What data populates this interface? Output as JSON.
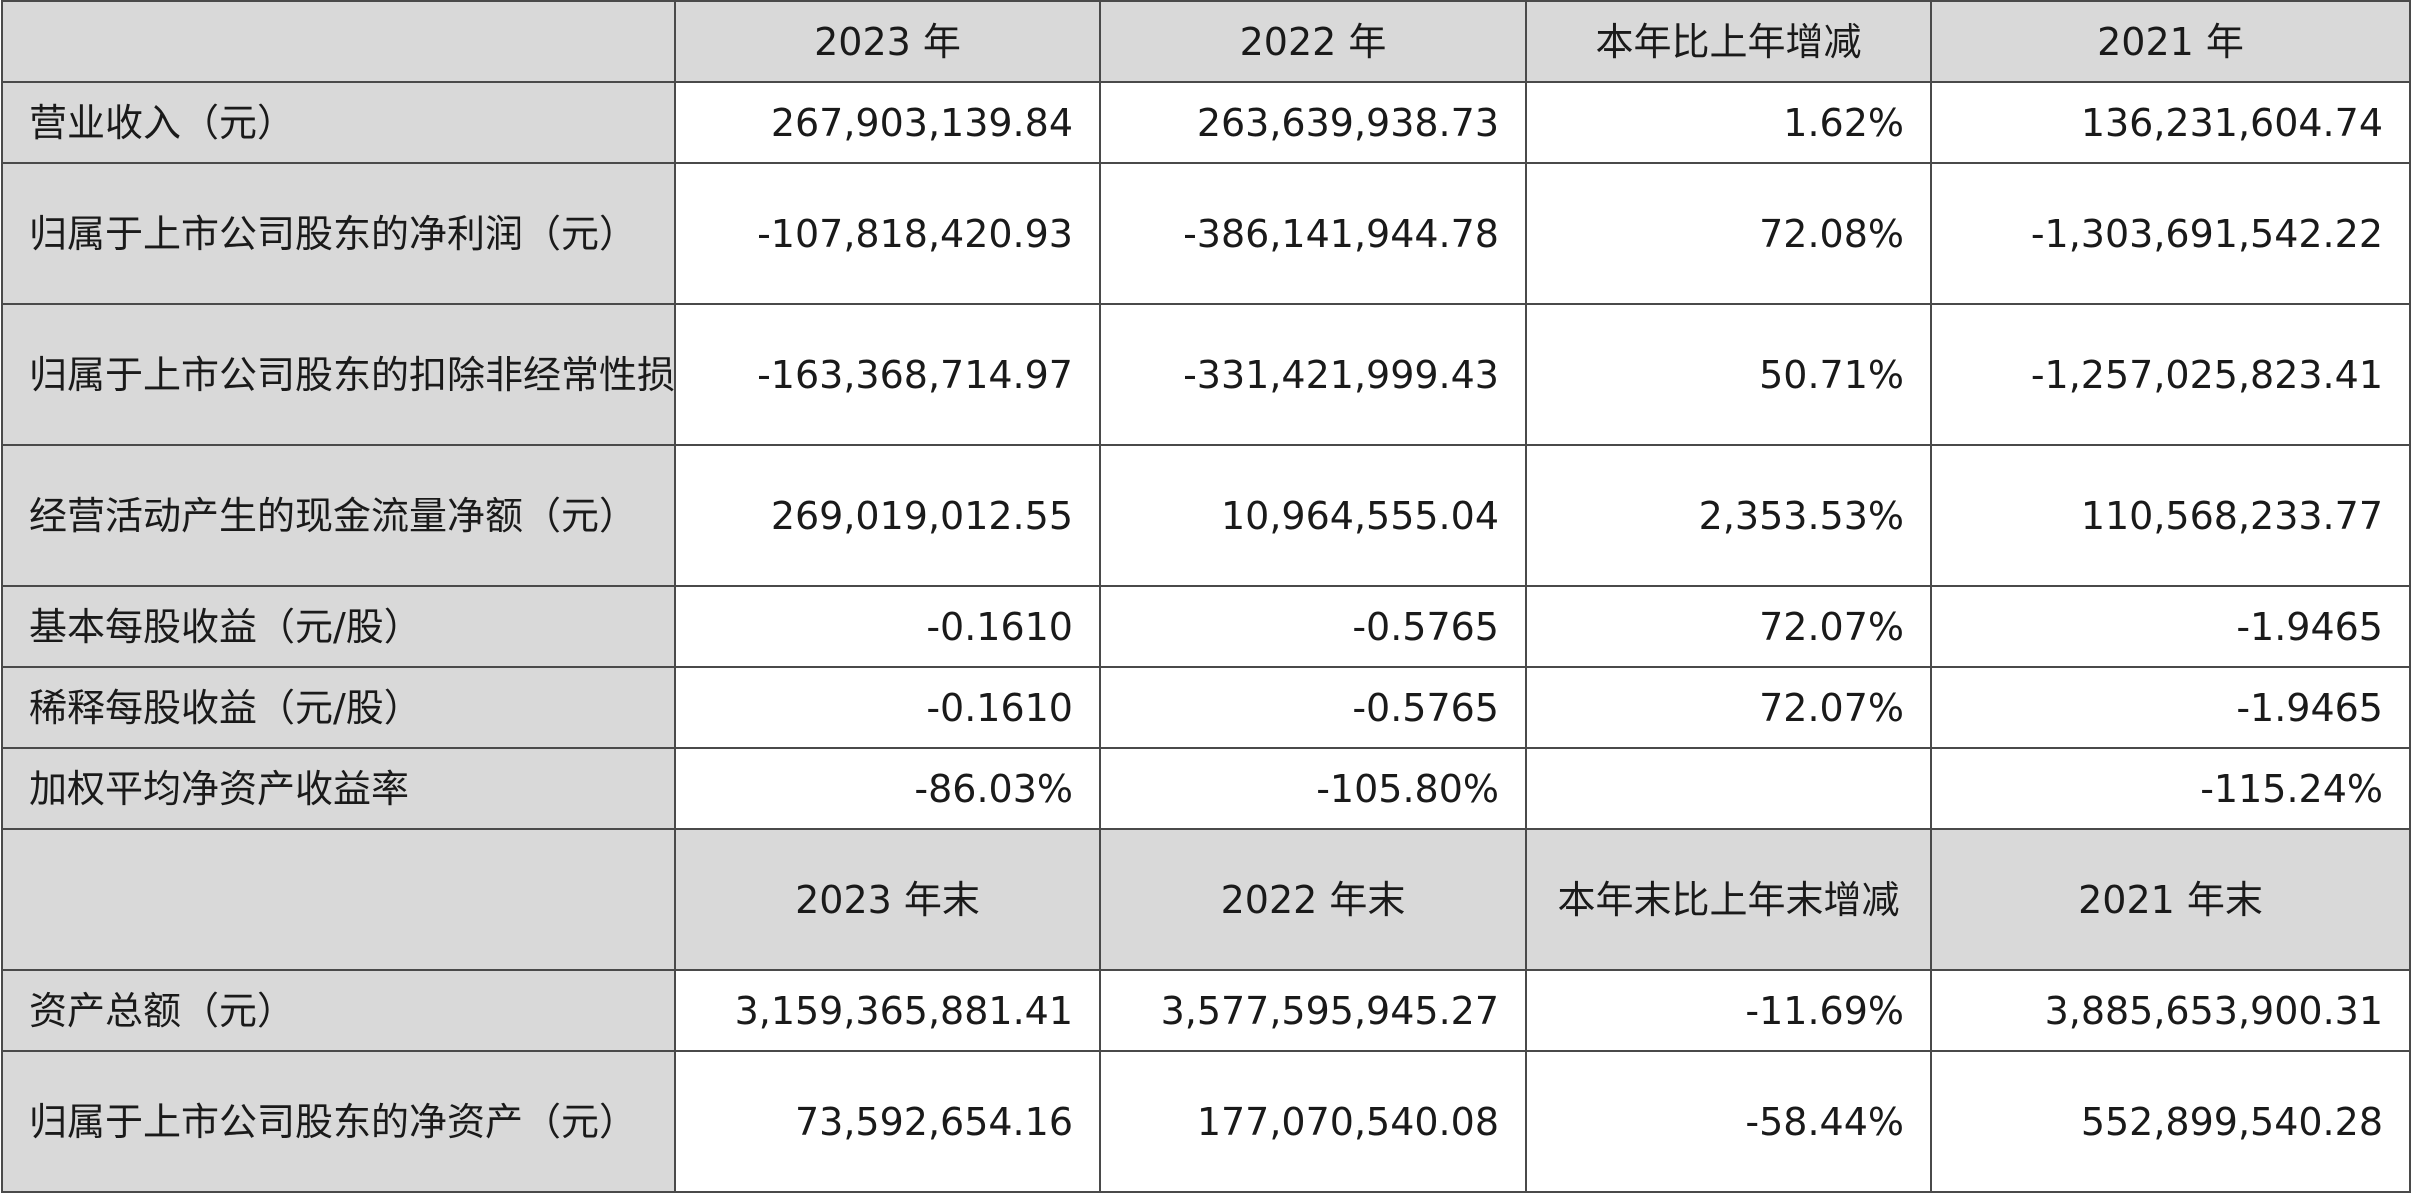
{
  "headers": {
    "corner": "",
    "col_2023": "2023 年",
    "col_2022": "2022 年",
    "col_change": "本年比上年增减",
    "col_2021": "2021 年"
  },
  "rows": [
    {
      "label": "营业收入（元）",
      "v2023": "267,903,139.84",
      "v2022": "263,639,938.73",
      "change": "1.62%",
      "v2021": "136,231,604.74"
    },
    {
      "label": "归属于上市公司股东的净利润（元）",
      "v2023": "-107,818,420.93",
      "v2022": "-386,141,944.78",
      "change": "72.08%",
      "v2021": "-1,303,691,542.22"
    },
    {
      "label": "归属于上市公司股东的扣除非经常性损益的净利润（元）",
      "v2023": "-163,368,714.97",
      "v2022": "-331,421,999.43",
      "change": "50.71%",
      "v2021": "-1,257,025,823.41"
    },
    {
      "label": "经营活动产生的现金流量净额（元）",
      "v2023": "269,019,012.55",
      "v2022": "10,964,555.04",
      "change": "2,353.53%",
      "v2021": "110,568,233.77"
    },
    {
      "label": "基本每股收益（元/股）",
      "v2023": "-0.1610",
      "v2022": "-0.5765",
      "change": "72.07%",
      "v2021": "-1.9465"
    },
    {
      "label": "稀释每股收益（元/股）",
      "v2023": "-0.1610",
      "v2022": "-0.5765",
      "change": "72.07%",
      "v2021": "-1.9465"
    },
    {
      "label": "加权平均净资产收益率",
      "v2023": "-86.03%",
      "v2022": "-105.80%",
      "change": "",
      "v2021": "-115.24%"
    }
  ],
  "headers2": {
    "corner": "",
    "col_2023": "2023 年末",
    "col_2022": "2022 年末",
    "col_change": "本年末比上年末增减",
    "col_2021": "2021 年末"
  },
  "rows2": [
    {
      "label": "资产总额（元）",
      "v2023": "3,159,365,881.41",
      "v2022": "3,577,595,945.27",
      "change": "-11.69%",
      "v2021": "3,885,653,900.31"
    },
    {
      "label": "归属于上市公司股东的净资产（元）",
      "v2023": "73,592,654.16",
      "v2022": "177,070,540.08",
      "change": "-58.44%",
      "v2021": "552,899,540.28"
    }
  ]
}
